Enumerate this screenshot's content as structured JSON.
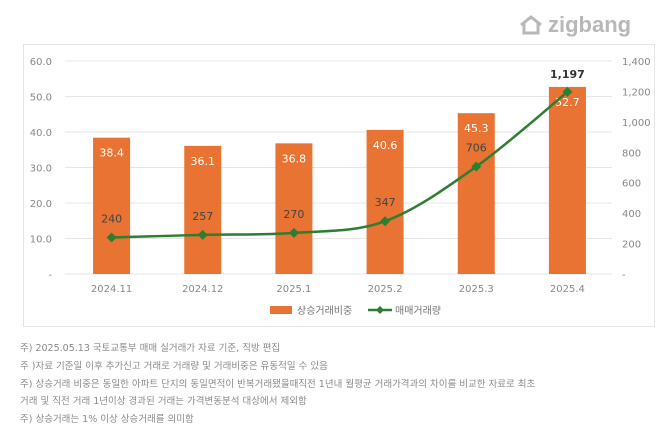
{
  "logo": {
    "text": "zigbang"
  },
  "chart_data": {
    "type": "bar+line",
    "categories": [
      "2024.11",
      "2024.12",
      "2025.1",
      "2025.2",
      "2025.3",
      "2025.4"
    ],
    "series": [
      {
        "name": "상승거래비중",
        "type": "bar",
        "axis": "left",
        "values": [
          38.4,
          36.1,
          36.8,
          40.6,
          45.3,
          52.7
        ],
        "labels": [
          "38.4",
          "36.1",
          "36.8",
          "40.6",
          "45.3",
          "52.7"
        ],
        "color": "#e87332"
      },
      {
        "name": "매매거래량",
        "type": "line",
        "axis": "right",
        "values": [
          240,
          257,
          270,
          347,
          706,
          1197
        ],
        "labels": [
          "240",
          "257",
          "270",
          "347",
          "706",
          "1,197"
        ],
        "color": "#2e7d32"
      }
    ],
    "y_left": {
      "range": [
        0,
        60
      ],
      "ticks": [
        "-",
        "10.0",
        "20.0",
        "30.0",
        "40.0",
        "50.0",
        "60.0"
      ]
    },
    "y_right": {
      "range": [
        0,
        1400
      ],
      "ticks": [
        "-",
        "200",
        "400",
        "600",
        "800",
        "1,000",
        "1,200",
        "1,400"
      ]
    },
    "grid": true,
    "legend": "bottom"
  },
  "notes": [
    "주) 2025.05.13 국토교통부 매매 실거래가 자료 기준, 직방 편집",
    "주 )자료 기준일 이후 추가신고 거래로 거래량 및 거래비중은 유동적일 수 있음",
    "주) 상승거래 비중은 동일한 아파트 단지의 동일면적이 반복거래됐을때직전 1년내 월평균 거래가격과의 차이를 비교한 자료로 최초",
    "거래 및 직전 거래 1년이상 경과된 거래는 가격변동분석 대상에서 제외함",
    "주) 상승거래는 1% 이상 상승거래를 의미함"
  ]
}
